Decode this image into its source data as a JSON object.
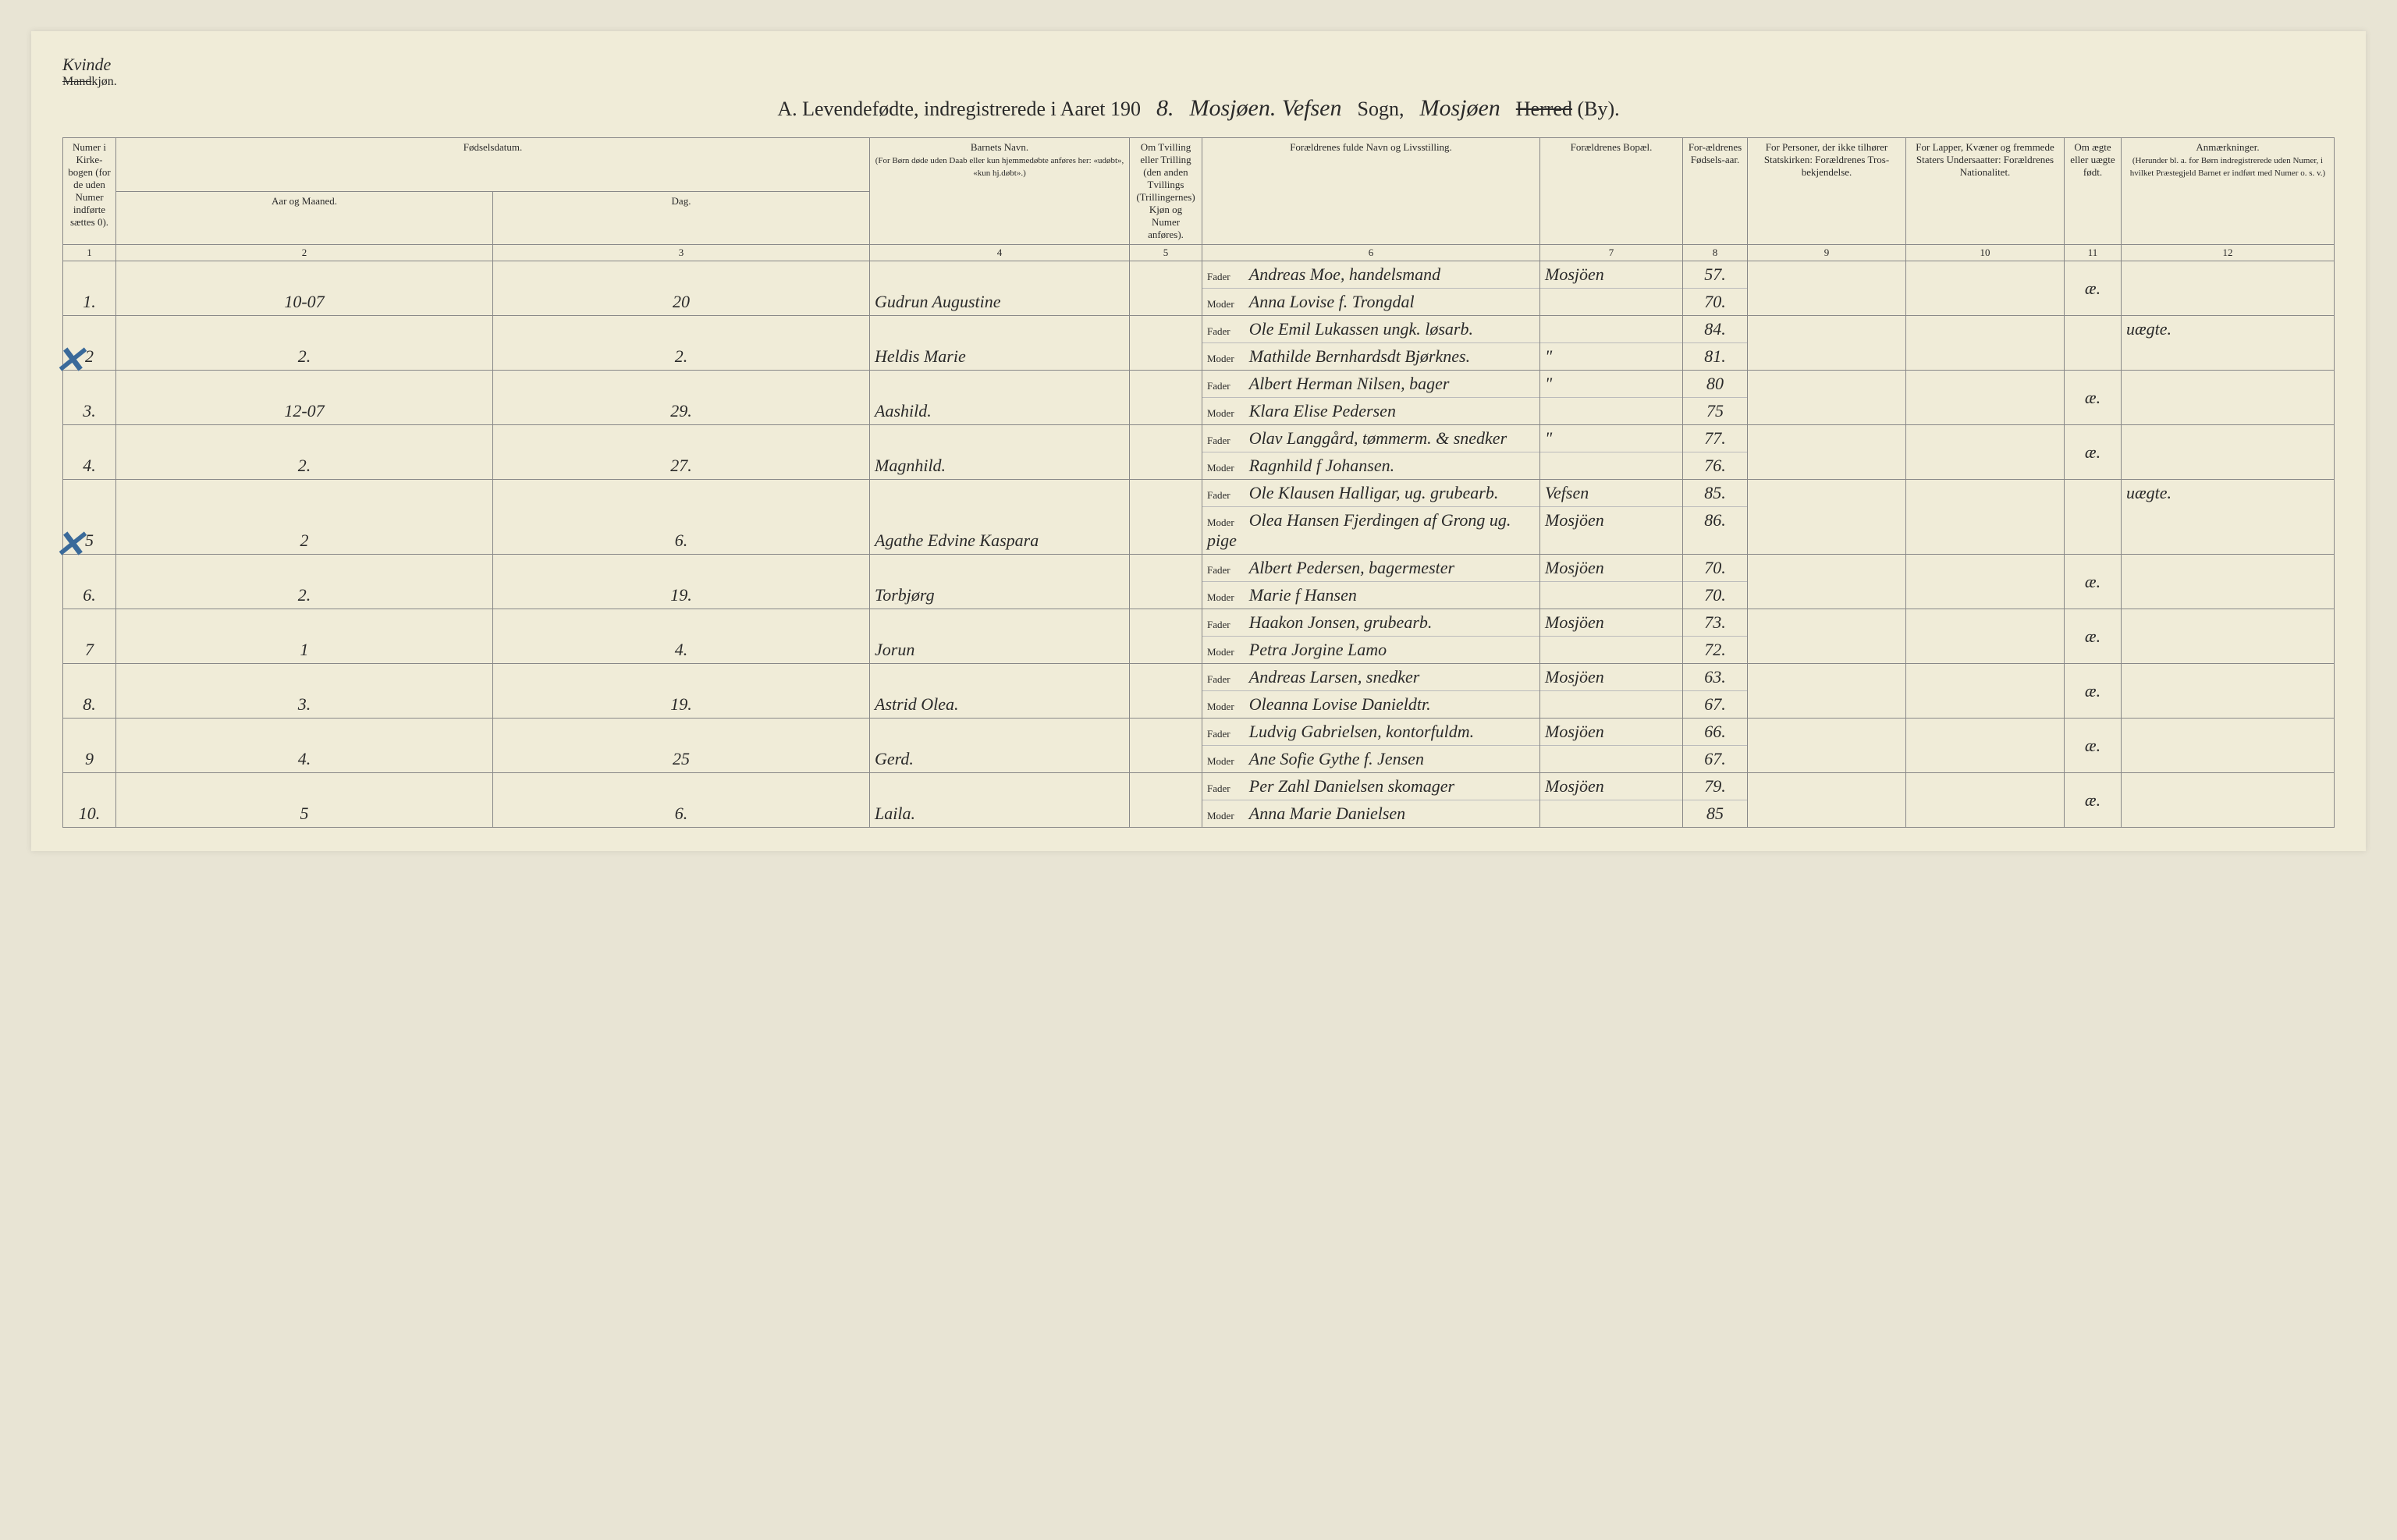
{
  "header": {
    "gender_handwritten": "Kvinde",
    "gender_struck": "Mand",
    "gender_suffix": "kjøn.",
    "title_prefix": "A.  Levendefødte, indregistrerede i Aaret 190",
    "year_digit": "8.",
    "parish_hw1": "Mosjøen. Vefsen",
    "sogn_label": "Sogn,",
    "parish_hw2": "Mosjøen",
    "herred_struck": "Herred",
    "by_label": "(By)."
  },
  "columns": {
    "c1": "Numer i Kirke-bogen (for de uden Numer indførte sættes 0).",
    "c2": "Fødselsdatum.",
    "c2a": "Aar og Maaned.",
    "c2b": "Dag.",
    "c4": "Barnets Navn.",
    "c4_sub": "(For Børn døde uden Daab eller kun hjemmedøbte anføres her: «udøbt», «kun hj.døbt».)",
    "c5": "Om Tvilling eller Trilling (den anden Tvillings (Trillingernes) Kjøn og Numer anføres).",
    "c6": "Forældrenes fulde Navn og Livsstilling.",
    "c7": "Forældrenes Bopæl.",
    "c8": "For-ældrenes Fødsels-aar.",
    "c9": "For Personer, der ikke tilhører Statskirken: Forældrenes Tros-bekjendelse.",
    "c10": "For Lapper, Kvæner og fremmede Staters Undersaatter: Forældrenes Nationalitet.",
    "c11": "Om ægte eller uægte født.",
    "c12": "Anmærkninger.",
    "c12_sub": "(Herunder bl. a. for Børn indregistrerede uden Numer, i hvilket Præstegjeld Barnet er indført med Numer o. s. v.)"
  },
  "colnums": [
    "1",
    "2",
    "3",
    "4",
    "5",
    "6",
    "7",
    "8",
    "9",
    "10",
    "11",
    "12"
  ],
  "parent_labels": {
    "father": "Fader",
    "mother": "Moder"
  },
  "rows": [
    {
      "num": "1.",
      "month": "10-07",
      "day": "20",
      "name": "Gudrun Augustine",
      "father": "Andreas Moe, handelsmand",
      "mother": "Anna Lovise f. Trongdal",
      "res_f": "Mosjöen",
      "res_m": "",
      "year_f": "57.",
      "year_m": "70.",
      "legit": "æ.",
      "notes": "",
      "mark": false
    },
    {
      "num": "2",
      "month": "2.",
      "day": "2.",
      "name": "Heldis Marie",
      "father": "Ole Emil Lukassen ungk. løsarb.",
      "mother": "Mathilde Bernhardsdt Bjørknes.",
      "res_f": "",
      "res_m": "\"",
      "year_f": "84.",
      "year_m": "81.",
      "legit": "",
      "notes": "uægte.",
      "mark": true
    },
    {
      "num": "3.",
      "month": "12-07",
      "day": "29.",
      "name": "Aashild.",
      "father": "Albert Herman Nilsen, bager",
      "mother": "Klara Elise Pedersen",
      "res_f": "\"",
      "res_m": "",
      "year_f": "80",
      "year_m": "75",
      "legit": "æ.",
      "notes": "",
      "mark": false
    },
    {
      "num": "4.",
      "month": "2.",
      "day": "27.",
      "name": "Magnhild.",
      "father": "Olav Langgård, tømmerm. & snedker",
      "mother": "Ragnhild f Johansen.",
      "res_f": "\"",
      "res_m": "",
      "year_f": "77.",
      "year_m": "76.",
      "legit": "æ.",
      "notes": "",
      "mark": false
    },
    {
      "num": "5",
      "month": "2",
      "day": "6.",
      "name": "Agathe Edvine Kaspara",
      "father": "Ole Klausen Halligar, ug. grubearb.",
      "mother": "Olea Hansen Fjerdingen af Grong ug. pige",
      "res_f": "Vefsen",
      "res_m": "Mosjöen",
      "year_f": "85.",
      "year_m": "86.",
      "legit": "",
      "notes": "uægte.",
      "mark": true
    },
    {
      "num": "6.",
      "month": "2.",
      "day": "19.",
      "name": "Torbjørg",
      "father": "Albert Pedersen, bagermester",
      "mother": "Marie f Hansen",
      "res_f": "Mosjöen",
      "res_m": "",
      "year_f": "70.",
      "year_m": "70.",
      "legit": "æ.",
      "notes": "",
      "mark": false
    },
    {
      "num": "7",
      "month": "1",
      "day": "4.",
      "name": "Jorun",
      "father": "Haakon Jonsen, grubearb.",
      "mother": "Petra Jorgine Lamo",
      "res_f": "Mosjöen",
      "res_m": "",
      "year_f": "73.",
      "year_m": "72.",
      "legit": "æ.",
      "notes": "",
      "mark": false
    },
    {
      "num": "8.",
      "month": "3.",
      "day": "19.",
      "name": "Astrid Olea.",
      "father": "Andreas Larsen, snedker",
      "mother": "Oleanna Lovise Danieldtr.",
      "res_f": "Mosjöen",
      "res_m": "",
      "year_f": "63.",
      "year_m": "67.",
      "legit": "æ.",
      "notes": "",
      "mark": false
    },
    {
      "num": "9",
      "month": "4.",
      "day": "25",
      "name": "Gerd.",
      "father": "Ludvig Gabrielsen, kontorfuldm.",
      "mother": "Ane Sofie Gythe f. Jensen",
      "res_f": "Mosjöen",
      "res_m": "",
      "year_f": "66.",
      "year_m": "67.",
      "legit": "æ.",
      "notes": "",
      "mark": false
    },
    {
      "num": "10.",
      "month": "5",
      "day": "6.",
      "name": "Laila.",
      "father": "Per Zahl Danielsen skomager",
      "mother": "Anna Marie Danielsen",
      "res_f": "Mosjöen",
      "res_m": "",
      "year_f": "79.",
      "year_m": "85",
      "legit": "æ.",
      "notes": "",
      "mark": false
    }
  ]
}
